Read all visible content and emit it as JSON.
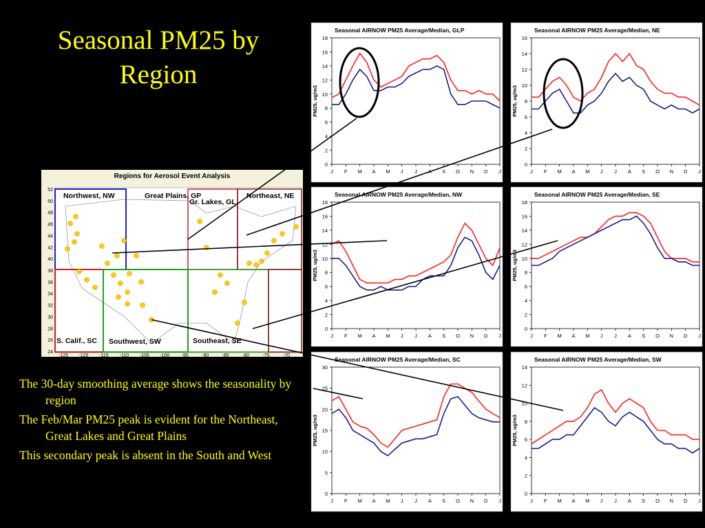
{
  "slide": {
    "title": [
      "Seasonal PM25 by",
      "Region"
    ],
    "bullets": [
      "The 30-day smoothing average shows the seasonality by region",
      "The Feb/Mar PM25 peak is evident for the Northeast, Great Lakes and Great Plains",
      "This secondary peak is absent in the South and West"
    ]
  },
  "map": {
    "title": "Regions for Aerosol Event Analysis",
    "regions": [
      "Northwest, NW",
      "Great Plains, GP",
      "Gr. Lakes, GL",
      "Northeast, NE",
      "S. Calif., SC",
      "Southwest, SW",
      "Southeast, SE"
    ],
    "yticks": [
      24,
      26,
      28,
      30,
      32,
      34,
      36,
      38,
      40,
      42,
      44,
      46,
      48,
      50,
      52
    ],
    "xticks": [
      -125,
      -120,
      -115,
      -110,
      -105,
      -100,
      -95,
      -90,
      -85,
      -80,
      -75,
      -70
    ]
  },
  "chart_data": [
    {
      "type": "line",
      "title": "Seasonal AIRNOW PM25 Average/Median, GLP",
      "ylabel": "PM25, ug/m3",
      "categories": [
        "J",
        null,
        "F",
        null,
        "M",
        null,
        "A",
        null,
        "M",
        null,
        "J",
        null,
        "J",
        null,
        "A",
        null,
        "S",
        null,
        "O",
        null,
        "N",
        null,
        "D",
        null,
        "J"
      ],
      "ylim": [
        0,
        18
      ],
      "yticks": [
        0,
        2,
        4,
        6,
        8,
        10,
        12,
        14,
        16,
        18
      ],
      "series": [
        {
          "color": "#ff2020",
          "values": [
            9.5,
            10,
            12,
            14,
            15.8,
            14.5,
            12,
            11,
            11.5,
            12,
            12.5,
            14,
            14.5,
            15,
            15,
            15.5,
            14.5,
            12,
            10.5,
            10.5,
            10,
            10.5,
            10,
            10,
            9
          ]
        },
        {
          "color": "#1a1a8c",
          "values": [
            8.5,
            8.5,
            10,
            12,
            13.5,
            12.5,
            10.5,
            10.5,
            11,
            11,
            11.5,
            12.5,
            13,
            13.5,
            13.5,
            14,
            13.5,
            10,
            8.5,
            8.5,
            9,
            9,
            9,
            8.5,
            8
          ]
        }
      ]
    },
    {
      "type": "line",
      "title": "Seasonal AIRNOW PM25 Average/Median, NE",
      "ylabel": "PM25, ug/m3",
      "categories": [
        "J",
        null,
        "F",
        null,
        "M",
        null,
        "A",
        null,
        "M",
        null,
        "J",
        null,
        "J",
        null,
        "A",
        null,
        "S",
        null,
        "O",
        null,
        "N",
        null,
        "D",
        null,
        "J"
      ],
      "ylim": [
        0,
        16
      ],
      "yticks": [
        0,
        2,
        4,
        6,
        8,
        10,
        12,
        14,
        16
      ],
      "series": [
        {
          "color": "#ff2020",
          "values": [
            8.5,
            8.5,
            9.5,
            10.5,
            11,
            10,
            8.5,
            8,
            9,
            9.5,
            11,
            13,
            14,
            13,
            14,
            12.5,
            12,
            10.5,
            9.5,
            9,
            9,
            8.5,
            8.5,
            8,
            7.5
          ]
        },
        {
          "color": "#1a1a8c",
          "values": [
            7,
            7,
            8,
            9,
            9.5,
            8,
            6.5,
            6.5,
            7.5,
            8,
            9,
            10.5,
            11.5,
            10.5,
            11,
            10,
            9.5,
            8,
            7.5,
            7,
            7.5,
            7,
            7,
            6.5,
            7
          ]
        }
      ]
    },
    {
      "type": "line",
      "title": "Seasonal AIRNOW PM25 Average/Median, NW",
      "ylabel": "PM25, ug/m3",
      "categories": [
        "J",
        null,
        "F",
        null,
        "M",
        null,
        "A",
        null,
        "M",
        null,
        "J",
        null,
        "J",
        null,
        "A",
        null,
        "S",
        null,
        "O",
        null,
        "N",
        null,
        "D",
        null,
        "J"
      ],
      "ylim": [
        0,
        18
      ],
      "yticks": [
        0,
        2,
        4,
        6,
        8,
        10,
        12,
        14,
        16,
        18
      ],
      "series": [
        {
          "color": "#ff2020",
          "values": [
            12,
            12.5,
            11,
            9,
            7,
            6.5,
            6.5,
            6.5,
            6.5,
            7,
            7,
            7.5,
            7.5,
            8,
            8.5,
            9,
            9.5,
            10.5,
            13,
            15,
            14,
            12,
            10,
            9,
            11.5
          ]
        },
        {
          "color": "#1a1a8c",
          "values": [
            10,
            10,
            9,
            7.5,
            6,
            5.5,
            5.5,
            6,
            5.5,
            5.5,
            5.5,
            6,
            6,
            7,
            7.5,
            7.5,
            7.5,
            9,
            11.5,
            13,
            12.5,
            10.5,
            8,
            7,
            9
          ]
        }
      ]
    },
    {
      "type": "line",
      "title": "Seasonal AIRNOW PM25 Average/Median, SE",
      "ylabel": "PM25, ug/m3",
      "categories": [
        "J",
        null,
        "F",
        null,
        "M",
        null,
        "A",
        null,
        "M",
        null,
        "J",
        null,
        "J",
        null,
        "A",
        null,
        "S",
        null,
        "O",
        null,
        "N",
        null,
        "D",
        null,
        "J"
      ],
      "ylim": [
        0,
        18
      ],
      "yticks": [
        0,
        2,
        4,
        6,
        8,
        10,
        12,
        14,
        16,
        18
      ],
      "series": [
        {
          "color": "#ff2020",
          "values": [
            10,
            10,
            10.5,
            11,
            11.5,
            12,
            12.5,
            13,
            13,
            13.5,
            14.5,
            15.5,
            16,
            16,
            16.5,
            16.5,
            16,
            15,
            13,
            11,
            10,
            10,
            10,
            9.5,
            9.5
          ]
        },
        {
          "color": "#1a1a8c",
          "values": [
            9,
            9,
            9.5,
            10,
            11,
            11.5,
            12,
            12.5,
            13,
            13.5,
            14,
            14.5,
            15,
            15.5,
            15.5,
            16,
            15,
            13.5,
            11.5,
            10,
            10,
            9.5,
            9.5,
            9,
            9
          ]
        }
      ]
    },
    {
      "type": "line",
      "title": "Seasonal AIRNOW PM25 Average/Median, SC",
      "ylabel": "PM25, ug/m3",
      "categories": [
        "J",
        null,
        "F",
        null,
        "M",
        null,
        "A",
        null,
        "M",
        null,
        "J",
        null,
        "J",
        null,
        "A",
        null,
        "S",
        null,
        "O",
        null,
        "N",
        null,
        "D",
        null,
        "J"
      ],
      "ylim": [
        0,
        30
      ],
      "yticks": [
        0,
        5,
        10,
        15,
        20,
        25,
        30
      ],
      "series": [
        {
          "color": "#ff2020",
          "values": [
            22,
            23,
            20,
            17,
            16,
            15.5,
            14,
            12,
            11,
            13,
            15,
            15.5,
            16,
            16.5,
            17,
            17.5,
            23,
            26,
            26,
            25,
            24,
            22,
            20,
            19,
            18
          ]
        },
        {
          "color": "#1a1a8c",
          "values": [
            19,
            20,
            18,
            15,
            14,
            13,
            12,
            10,
            9,
            10.5,
            12,
            12.5,
            13,
            13,
            13.5,
            14,
            19,
            22.5,
            23,
            21,
            19,
            18,
            17.5,
            17,
            17
          ]
        }
      ]
    },
    {
      "type": "line",
      "title": "Seasonal AIRNOW PM25 Average/Median, SW",
      "ylabel": "PM25, ug/m3",
      "categories": [
        "J",
        null,
        "F",
        null,
        "M",
        null,
        "A",
        null,
        "M",
        null,
        "J",
        null,
        "J",
        null,
        "A",
        null,
        "S",
        null,
        "O",
        null,
        "N",
        null,
        "D",
        null,
        "J"
      ],
      "ylim": [
        0,
        14
      ],
      "yticks": [
        0,
        2,
        4,
        6,
        8,
        10,
        12,
        14
      ],
      "series": [
        {
          "color": "#ff2020",
          "values": [
            5.5,
            6,
            6.5,
            7,
            7.5,
            8,
            8,
            8.5,
            9.5,
            11,
            11.5,
            10,
            9,
            10,
            10.5,
            10,
            9.5,
            8,
            7,
            7,
            6.5,
            6.5,
            6.5,
            6,
            6
          ]
        },
        {
          "color": "#1a1a8c",
          "values": [
            5,
            5,
            5.5,
            6,
            6,
            6.5,
            6.5,
            7.5,
            8.5,
            9.5,
            9,
            8,
            7.5,
            8.5,
            9,
            8.5,
            8,
            7,
            6,
            5.5,
            5.5,
            5,
            5,
            4.5,
            5
          ]
        }
      ]
    }
  ]
}
